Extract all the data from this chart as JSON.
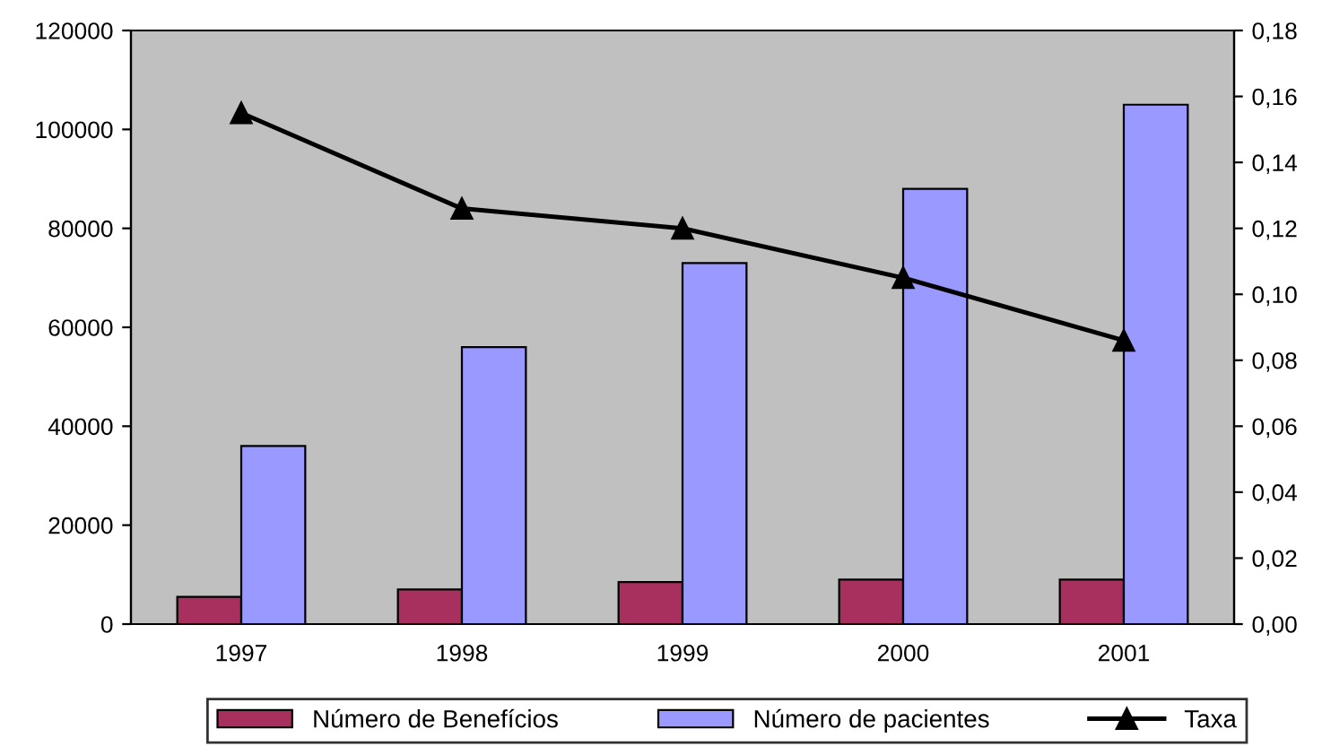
{
  "chart_data": {
    "type": "bar",
    "categories": [
      "1997",
      "1998",
      "1999",
      "2000",
      "2001"
    ],
    "series": [
      {
        "name": "Número de Benefícios",
        "color": "#a8305e",
        "values": [
          5500,
          7000,
          8500,
          9000,
          9000
        ]
      },
      {
        "name": "Número de pacientes",
        "color": "#9999ff",
        "values": [
          36000,
          56000,
          73000,
          88000,
          105000
        ]
      },
      {
        "name": "Taxa",
        "type": "line",
        "axis": "y2",
        "color": "#000000",
        "marker": "triangle",
        "values": [
          0.155,
          0.126,
          0.12,
          0.105,
          0.086
        ]
      }
    ],
    "ylim": [
      0,
      120000
    ],
    "yticks": [
      0,
      20000,
      40000,
      60000,
      80000,
      100000,
      120000
    ],
    "y2lim": [
      0,
      0.18
    ],
    "y2ticks": [
      {
        "value": 0,
        "label": "0,00"
      },
      {
        "value": 0.02,
        "label": "0,02"
      },
      {
        "value": 0.04,
        "label": "0,04"
      },
      {
        "value": 0.06,
        "label": "0,06"
      },
      {
        "value": 0.08,
        "label": "0,08"
      },
      {
        "value": 0.1,
        "label": "0,10"
      },
      {
        "value": 0.12,
        "label": "0,12"
      },
      {
        "value": 0.14,
        "label": "0,14"
      },
      {
        "value": 0.16,
        "label": "0,16"
      },
      {
        "value": 0.18,
        "label": "0,18"
      }
    ],
    "grid": false,
    "legend": "bottom"
  }
}
